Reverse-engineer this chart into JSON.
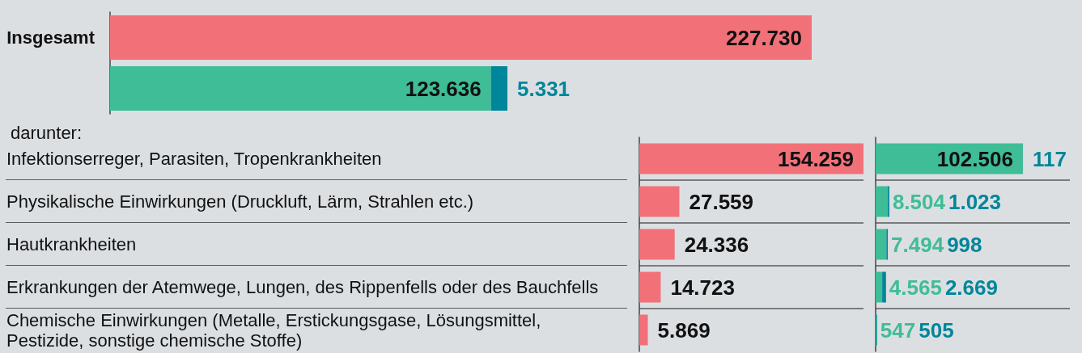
{
  "chart_data": [
    {
      "type": "bar",
      "orientation": "horizontal",
      "categories": [
        "Insgesamt"
      ],
      "tick_labels": "y",
      "series": [
        {
          "color": "#f27179",
          "values": [
            227730
          ],
          "value_labels": [
            "227.730"
          ]
        }
      ]
    },
    {
      "type": "bar",
      "orientation": "horizontal",
      "stacked": true,
      "categories": [
        null
      ],
      "tick_labels": false,
      "series": [
        {
          "color": "#3fbd96",
          "values": [
            123636
          ],
          "value_labels": [
            "123.636"
          ]
        },
        {
          "color": "#00869a",
          "values": [
            5331
          ],
          "value_labels": [
            "5.331"
          ]
        }
      ]
    },
    {
      "type": "bar",
      "orientation": "horizontal",
      "title": "darunter:",
      "categories": [
        "Infektionserreger, Parasiten, Tropenkrankheiten",
        "Physikalische Einwirkungen (Druckluft, Lärm, Strahlen etc.)",
        "Hautkrankheiten",
        "Erkrankungen der Atemwege, Lungen, des Rippenfells oder des Bauchfells",
        "Chemische Einwirkungen (Metalle, Erstickungsgase, Lösungsmittel, Pestizide, sonstige chemische Stoffe)"
      ],
      "tick_labels": "y",
      "grid": "y",
      "series": [
        {
          "color": "#f27179",
          "values": [
            154259,
            27559,
            24336,
            14723,
            5869
          ],
          "value_labels": [
            "154.259",
            "27.559",
            "24.336",
            "14.723",
            "5.869"
          ]
        }
      ]
    },
    {
      "type": "bar",
      "orientation": "horizontal",
      "stacked": true,
      "categories": [
        null,
        null,
        null,
        null,
        null
      ],
      "tick_labels": false,
      "grid": "y",
      "series": [
        {
          "color": "#3fbd96",
          "values": [
            102506,
            8504,
            7494,
            4565,
            547
          ],
          "value_labels": [
            "102.506",
            "8.504",
            "7.494",
            "4.565",
            "547"
          ]
        },
        {
          "color": "#00869a",
          "values": [
            117,
            1023,
            998,
            2669,
            505
          ],
          "value_labels": [
            "117",
            "1.023",
            "998",
            "2.669",
            "505"
          ]
        }
      ]
    }
  ]
}
